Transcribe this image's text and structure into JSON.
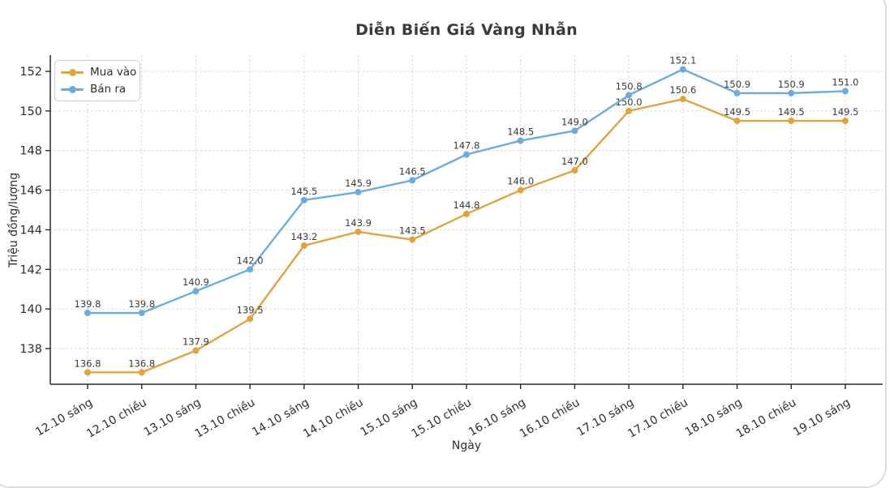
{
  "chart_data": {
    "type": "line",
    "title": "Diễn Biến Giá Vàng Nhẫn",
    "xlabel": "Ngày",
    "ylabel": "Triệu đồng/lượng",
    "categories": [
      "12.10 sáng",
      "12.10 chiều",
      "13.10 sáng",
      "13.10 chiều",
      "14.10 sáng",
      "14.10 chiều",
      "15.10 sáng",
      "15.10 chiều",
      "16.10 sáng",
      "16.10 chiều",
      "17.10 sáng",
      "17.10 chiều",
      "18.10 sáng",
      "18.10 chiều",
      "19.10 sáng"
    ],
    "series": [
      {
        "name": "Mua vào",
        "color": "#E2A33C",
        "values": [
          136.8,
          136.8,
          137.9,
          139.5,
          143.2,
          143.9,
          143.5,
          144.8,
          146.0,
          147.0,
          150.0,
          150.6,
          149.5,
          149.5,
          149.5
        ]
      },
      {
        "name": "Bán ra",
        "color": "#6AACDF",
        "values": [
          139.8,
          139.8,
          140.9,
          142.0,
          145.5,
          145.9,
          146.5,
          147.8,
          148.5,
          149.0,
          150.8,
          152.1,
          150.9,
          150.9,
          151.0
        ]
      }
    ],
    "ylim": [
      136.2,
      152.82
    ],
    "yticks": [
      138,
      140,
      142,
      144,
      146,
      148,
      150,
      152
    ],
    "grid": true,
    "grid_style": "dashed",
    "legend_position": "upper left",
    "point_labels": true,
    "label_format": "1-decimal",
    "colors": {
      "axis": "#2b2b2b",
      "tick_label": "#2e2e2e",
      "point_label": "#3a3a3a",
      "grid": "#d2d2d2",
      "title": "#3a3a3a"
    }
  }
}
